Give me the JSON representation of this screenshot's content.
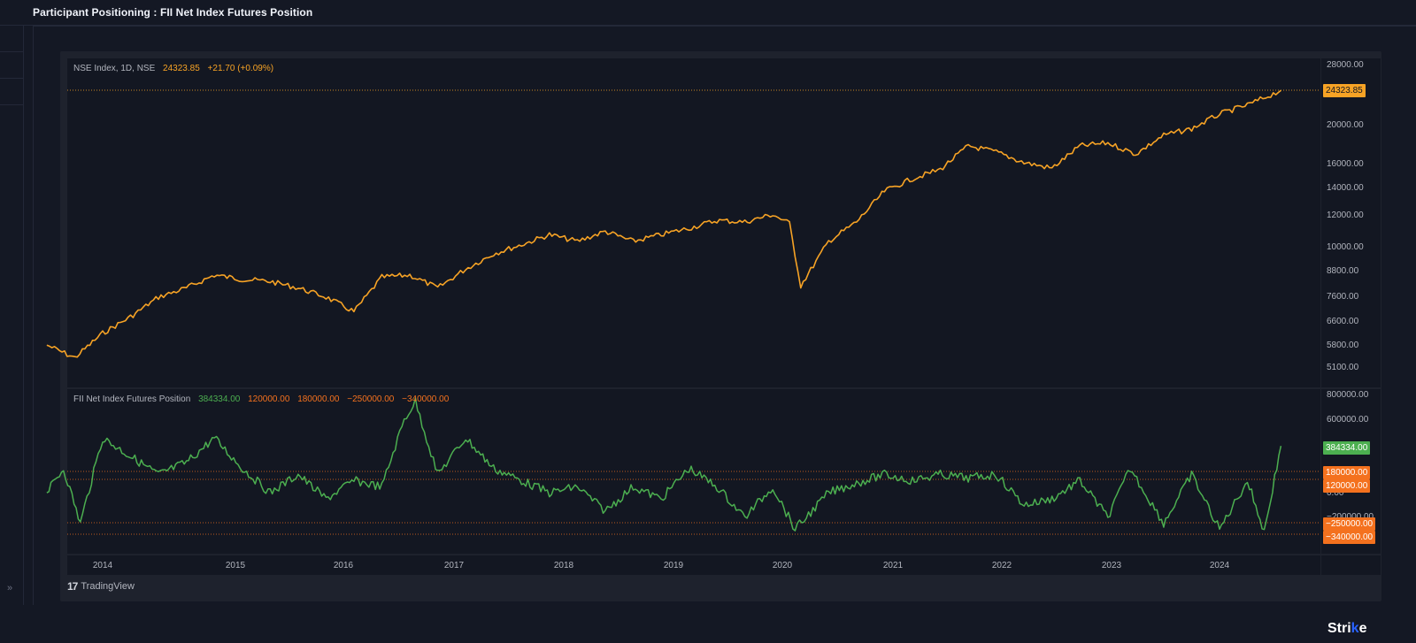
{
  "page": {
    "title": "Participant Positioning : FII Net Index Futures Position",
    "sidebar_expand_icon": "»",
    "brand": {
      "text_main": "Stri",
      "text_accent": "k",
      "text_end": "e"
    },
    "footer": {
      "logo_glyph": "17",
      "label": "TradingView"
    }
  },
  "colors": {
    "background": "#131722",
    "panel": "#1e222d",
    "price_line": "#f7a325",
    "indicator_line": "#4caf50",
    "level_line": "#f4711e",
    "axis_text": "#b2b5be"
  },
  "main_pane": {
    "legend": {
      "symbol": "NSE Index, 1D, NSE",
      "last": "24323.85",
      "change": "+21.70 (+0.09%)"
    },
    "last_price_tag": "24323.85",
    "y_ticks": [
      "28000.00",
      "20000.00",
      "16000.00",
      "14000.00",
      "12000.00",
      "10000.00",
      "8800.00",
      "7600.00",
      "6600.00",
      "5800.00",
      "5100.00"
    ]
  },
  "lower_pane": {
    "legend": {
      "name": "FII Net Index Futures Position",
      "value": "384334.00",
      "levels": [
        "120000.00",
        "180000.00",
        "−250000.00",
        "−340000.00"
      ]
    },
    "y_ticks": [
      "800000.00",
      "600000.00",
      "0.00",
      "−200000.00",
      "−400000.00"
    ],
    "tags": {
      "current": "384334.00",
      "upper_1": "180000.00",
      "upper_2": "120000.00",
      "lower_1": "−250000.00",
      "lower_2": "−340000.00"
    }
  },
  "time_axis": {
    "years": [
      "2014",
      "2015",
      "2016",
      "2017",
      "2018",
      "2019",
      "2020",
      "2021",
      "2022",
      "2023",
      "2024"
    ]
  },
  "chart_data": [
    {
      "type": "line",
      "title": "NSE Index, 1D, NSE",
      "scale": "log",
      "ylim": [
        5000,
        28000
      ],
      "x": [
        "2013.5",
        "2013.75",
        "2014.0",
        "2014.25",
        "2014.5",
        "2014.75",
        "2015.0",
        "2015.25",
        "2015.5",
        "2015.75",
        "2016.0",
        "2016.25",
        "2016.5",
        "2016.75",
        "2017.0",
        "2017.25",
        "2017.5",
        "2017.75",
        "2018.0",
        "2018.25",
        "2018.5",
        "2018.75",
        "2019.0",
        "2019.25",
        "2019.5",
        "2019.75",
        "2020.0",
        "2020.15",
        "2020.25",
        "2020.5",
        "2020.75",
        "2021.0",
        "2021.25",
        "2021.5",
        "2021.75",
        "2022.0",
        "2022.25",
        "2022.5",
        "2022.75",
        "2023.0",
        "2023.25",
        "2023.5",
        "2023.75",
        "2024.0",
        "2024.25",
        "2024.55"
      ],
      "series": [
        {
          "name": "NSE Index",
          "values": [
            5800,
            5400,
            6200,
            6800,
            7600,
            8000,
            8600,
            8400,
            8300,
            8000,
            7600,
            7000,
            8500,
            8600,
            8000,
            8900,
            9700,
            10200,
            10800,
            10400,
            11000,
            10400,
            10800,
            11200,
            11700,
            11600,
            12100,
            11500,
            8100,
            10400,
            11600,
            13800,
            14800,
            15600,
            17800,
            17200,
            16200,
            15700,
            17800,
            18100,
            17000,
            18900,
            19600,
            21300,
            22400,
            24323.85
          ]
        }
      ],
      "ylabel": "",
      "xlabel": ""
    },
    {
      "type": "line",
      "title": "FII Net Index Futures Position",
      "ylim": [
        -450000,
        850000
      ],
      "reference_levels": [
        180000,
        120000,
        -250000,
        -340000
      ],
      "x": [
        "2013.5",
        "2013.65",
        "2013.8",
        "2014.0",
        "2014.25",
        "2014.5",
        "2014.75",
        "2015.0",
        "2015.25",
        "2015.5",
        "2015.75",
        "2016.0",
        "2016.25",
        "2016.5",
        "2016.7",
        "2016.8",
        "2017.0",
        "2017.25",
        "2017.5",
        "2017.75",
        "2018.0",
        "2018.25",
        "2018.5",
        "2018.75",
        "2019.0",
        "2019.25",
        "2019.5",
        "2019.75",
        "2020.0",
        "2020.2",
        "2020.5",
        "2020.75",
        "2021.0",
        "2021.25",
        "2021.5",
        "2021.75",
        "2022.0",
        "2022.25",
        "2022.5",
        "2022.75",
        "2023.0",
        "2023.2",
        "2023.5",
        "2023.75",
        "2024.0",
        "2024.25",
        "2024.4",
        "2024.55"
      ],
      "series": [
        {
          "name": "FII Net Index Futures Position",
          "values": [
            0,
            200000,
            -250000,
            450000,
            300000,
            150000,
            250000,
            450000,
            200000,
            0,
            150000,
            -50000,
            100000,
            50000,
            600000,
            750000,
            150000,
            450000,
            200000,
            100000,
            0,
            50000,
            -150000,
            50000,
            -50000,
            200000,
            50000,
            -200000,
            50000,
            -300000,
            0,
            80000,
            150000,
            100000,
            150000,
            120000,
            150000,
            -100000,
            -50000,
            100000,
            -200000,
            200000,
            -250000,
            150000,
            -300000,
            100000,
            -320000,
            384334
          ]
        }
      ]
    }
  ]
}
